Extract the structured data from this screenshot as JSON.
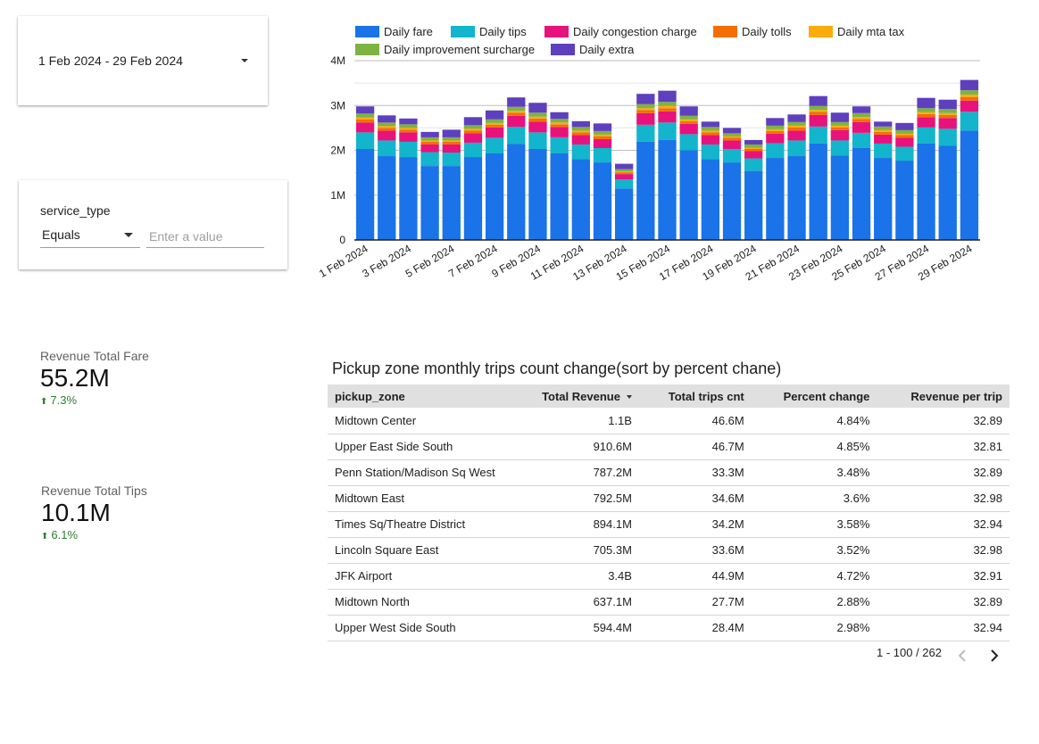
{
  "date_range": {
    "label": "1 Feb 2024 - 29 Feb 2024"
  },
  "filter": {
    "field_label": "service_type",
    "operator": "Equals",
    "value_placeholder": "Enter a value"
  },
  "scorecards": [
    {
      "label": "Revenue Total Fare",
      "value": "55.2M",
      "delta": "7.3%"
    },
    {
      "label": "Revenue Total Tips",
      "value": "10.1M",
      "delta": "6.1%"
    }
  ],
  "chart_data": {
    "type": "bar",
    "stacked": true,
    "categories": [
      "1 Feb 2024",
      "2 Feb 2024",
      "3 Feb 2024",
      "4 Feb 2024",
      "5 Feb 2024",
      "6 Feb 2024",
      "7 Feb 2024",
      "8 Feb 2024",
      "9 Feb 2024",
      "10 Feb 2024",
      "11 Feb 2024",
      "12 Feb 2024",
      "13 Feb 2024",
      "14 Feb 2024",
      "15 Feb 2024",
      "16 Feb 2024",
      "17 Feb 2024",
      "18 Feb 2024",
      "19 Feb 2024",
      "20 Feb 2024",
      "21 Feb 2024",
      "22 Feb 2024",
      "23 Feb 2024",
      "24 Feb 2024",
      "25 Feb 2024",
      "26 Feb 2024",
      "27 Feb 2024",
      "28 Feb 2024",
      "29 Feb 2024"
    ],
    "tick_labels": [
      "1 Feb 2024",
      "3 Feb 2024",
      "5 Feb 2024",
      "7 Feb 2024",
      "9 Feb 2024",
      "11 Feb 2024",
      "13 Feb 2024",
      "15 Feb 2024",
      "17 Feb 2024",
      "19 Feb 2024",
      "21 Feb 2024",
      "23 Feb 2024",
      "25 Feb 2024",
      "27 Feb 2024",
      "29 Feb 2024"
    ],
    "ylim": [
      0,
      4000000
    ],
    "yticks": [
      0,
      1000000,
      2000000,
      3000000,
      4000000
    ],
    "ytick_labels": [
      "0",
      "1M",
      "2M",
      "3M",
      "4M"
    ],
    "legend_position": "top",
    "grid": true,
    "series": [
      {
        "name": "Daily fare",
        "color": "#1a73e8",
        "values": [
          2030000,
          1870000,
          1850000,
          1650000,
          1650000,
          1850000,
          1930000,
          2140000,
          2030000,
          1930000,
          1800000,
          1730000,
          1150000,
          2190000,
          2230000,
          2000000,
          1800000,
          1730000,
          1540000,
          1830000,
          1870000,
          2150000,
          1880000,
          2050000,
          1830000,
          1770000,
          2150000,
          2100000,
          2440000
        ]
      },
      {
        "name": "Daily tips",
        "color": "#12b5cb",
        "values": [
          370000,
          350000,
          340000,
          310000,
          300000,
          320000,
          350000,
          380000,
          370000,
          360000,
          330000,
          320000,
          200000,
          380000,
          390000,
          360000,
          330000,
          300000,
          280000,
          330000,
          350000,
          380000,
          340000,
          340000,
          320000,
          310000,
          360000,
          380000,
          420000
        ]
      },
      {
        "name": "Daily congestion charge",
        "color": "#e8127c",
        "values": [
          220000,
          220000,
          210000,
          170000,
          180000,
          210000,
          230000,
          250000,
          240000,
          230000,
          210000,
          200000,
          120000,
          260000,
          250000,
          230000,
          210000,
          190000,
          160000,
          210000,
          220000,
          260000,
          230000,
          240000,
          200000,
          200000,
          230000,
          240000,
          250000
        ]
      },
      {
        "name": "Daily tolls",
        "color": "#f46e07",
        "values": [
          70000,
          60000,
          60000,
          60000,
          60000,
          60000,
          60000,
          70000,
          70000,
          60000,
          60000,
          60000,
          40000,
          70000,
          70000,
          60000,
          60000,
          60000,
          50000,
          60000,
          70000,
          70000,
          60000,
          70000,
          60000,
          60000,
          70000,
          70000,
          80000
        ]
      },
      {
        "name": "Daily mta tax",
        "color": "#fbab0b",
        "values": [
          40000,
          40000,
          40000,
          30000,
          30000,
          40000,
          40000,
          40000,
          40000,
          40000,
          40000,
          40000,
          20000,
          40000,
          50000,
          40000,
          40000,
          30000,
          30000,
          40000,
          40000,
          40000,
          40000,
          40000,
          40000,
          30000,
          40000,
          40000,
          50000
        ]
      },
      {
        "name": "Daily improvement surcharge",
        "color": "#7cb342",
        "values": [
          90000,
          80000,
          80000,
          70000,
          70000,
          80000,
          80000,
          90000,
          90000,
          80000,
          80000,
          80000,
          50000,
          90000,
          90000,
          80000,
          80000,
          70000,
          70000,
          80000,
          80000,
          90000,
          80000,
          90000,
          80000,
          80000,
          90000,
          90000,
          100000
        ]
      },
      {
        "name": "Daily extra",
        "color": "#5e3fbe",
        "values": [
          160000,
          160000,
          130000,
          120000,
          170000,
          180000,
          200000,
          210000,
          220000,
          150000,
          130000,
          170000,
          120000,
          230000,
          250000,
          210000,
          120000,
          120000,
          100000,
          170000,
          170000,
          220000,
          210000,
          150000,
          110000,
          160000,
          230000,
          210000,
          230000
        ]
      }
    ]
  },
  "table": {
    "title": "Pickup zone monthly trips count change(sort by percent chane)",
    "columns": [
      "pickup_zone",
      "Total Revenue",
      "Total trips cnt",
      "Percent change",
      "Revenue per trip"
    ],
    "rows": [
      [
        "Midtown Center",
        "1.1B",
        "46.6M",
        "4.84%",
        "32.89"
      ],
      [
        "Upper East Side South",
        "910.6M",
        "46.7M",
        "4.85%",
        "32.81"
      ],
      [
        "Penn Station/Madison Sq West",
        "787.2M",
        "33.3M",
        "3.48%",
        "32.89"
      ],
      [
        "Midtown East",
        "792.5M",
        "34.6M",
        "3.6%",
        "32.98"
      ],
      [
        "Times Sq/Theatre District",
        "894.1M",
        "34.2M",
        "3.58%",
        "32.94"
      ],
      [
        "Lincoln Square East",
        "705.3M",
        "33.6M",
        "3.52%",
        "32.98"
      ],
      [
        "JFK Airport",
        "3.4B",
        "44.9M",
        "4.72%",
        "32.91"
      ],
      [
        "Midtown North",
        "637.1M",
        "27.7M",
        "2.88%",
        "32.89"
      ],
      [
        "Upper West Side South",
        "594.4M",
        "28.4M",
        "2.98%",
        "32.94"
      ]
    ],
    "pagination": "1 - 100 / 262"
  },
  "icons": {
    "date_dropdown": "chevron-down-icon",
    "sort": "sort-desc-icon",
    "prev": "chevron-left-icon",
    "next": "chevron-right-icon",
    "delta": "arrow-up-icon"
  }
}
